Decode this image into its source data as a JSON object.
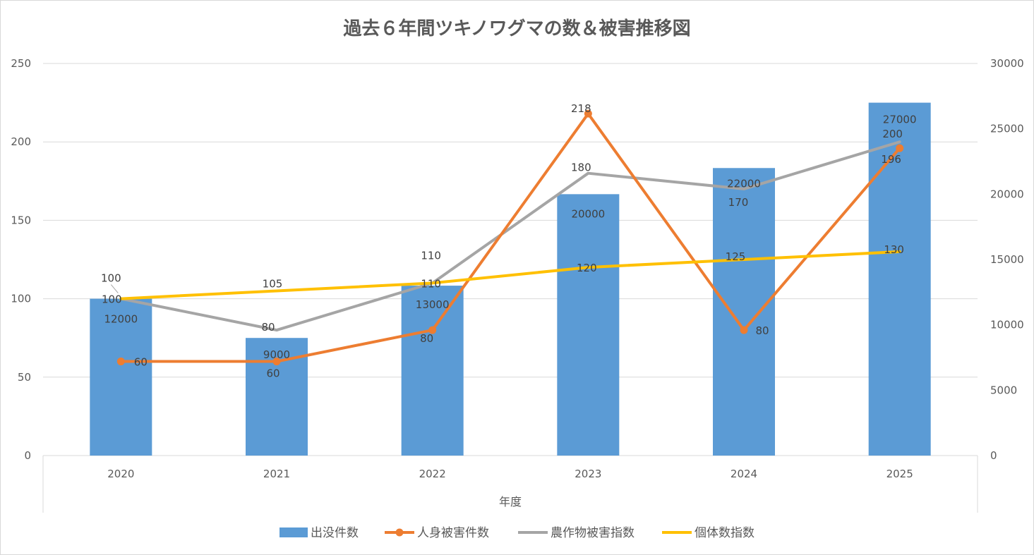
{
  "chart_data": {
    "type": "bar+line",
    "title": "過去６年間ツキノワグマの数＆被害推移図",
    "xlabel": "年度",
    "categories": [
      "2020",
      "2021",
      "2022",
      "2023",
      "2024",
      "2025"
    ],
    "y_left": {
      "ylim": [
        0,
        250
      ],
      "ticks": [
        0,
        50,
        100,
        150,
        200,
        250
      ]
    },
    "y_right": {
      "ylim": [
        0,
        30000
      ],
      "ticks": [
        0,
        5000,
        10000,
        15000,
        20000,
        25000,
        30000
      ]
    },
    "grid": true,
    "legend_position": "bottom",
    "series": [
      {
        "name": "出没件数",
        "kind": "bar",
        "axis": "right",
        "color": "#5b9bd5",
        "values": [
          12000,
          9000,
          13000,
          20000,
          22000,
          27000
        ]
      },
      {
        "name": "人身被害件数",
        "kind": "line-marker",
        "axis": "left",
        "color": "#ed7d31",
        "values": [
          60,
          60,
          80,
          218,
          80,
          196
        ]
      },
      {
        "name": "農作物被害指数",
        "kind": "line",
        "axis": "left",
        "color": "#a5a5a5",
        "values": [
          100,
          80,
          110,
          180,
          170,
          200
        ]
      },
      {
        "name": "個体数指数",
        "kind": "line",
        "axis": "left",
        "color": "#ffc000",
        "values": [
          100,
          105,
          110,
          120,
          125,
          130
        ]
      }
    ]
  }
}
